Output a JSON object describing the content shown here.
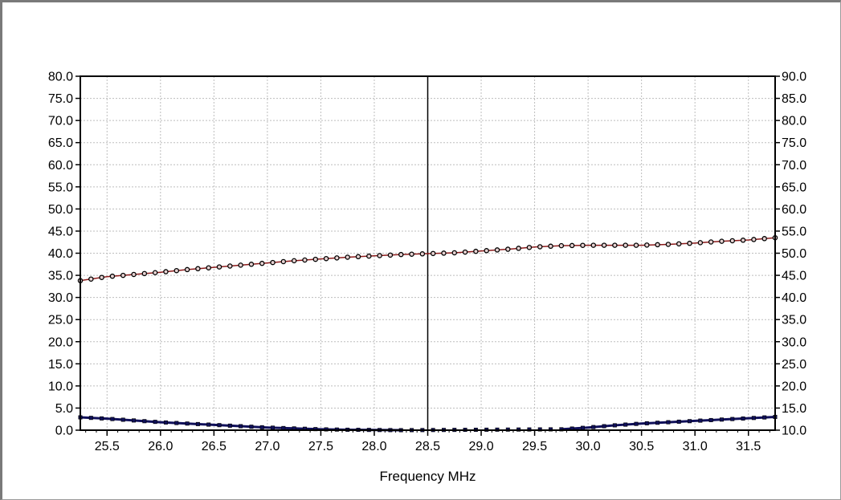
{
  "colors": {
    "background": "#ffffff",
    "plot_background": "#ffffff",
    "grid": "#bdbdbd",
    "series_upper": "#8b1a1a",
    "series_lower": "#10105a",
    "marker_edge": "#000000",
    "marker_fill": "#e6d2d2",
    "cursor": "#000000"
  },
  "chart_data": {
    "type": "line",
    "xlabel": "Frequency MHz",
    "xlim": [
      25.25,
      31.75
    ],
    "xticks": [
      "25.5",
      "26.0",
      "26.5",
      "27.0",
      "27.5",
      "28.0",
      "28.5",
      "29.0",
      "29.5",
      "30.0",
      "30.5",
      "31.0",
      "31.5"
    ],
    "ylim_left": [
      0,
      80
    ],
    "yticks_left": [
      "0.0",
      "5.0",
      "10.0",
      "15.0",
      "20.0",
      "25.0",
      "30.0",
      "35.0",
      "40.0",
      "45.0",
      "50.0",
      "55.0",
      "60.0",
      "65.0",
      "70.0",
      "75.0",
      "80.0"
    ],
    "ylim_right": [
      10,
      90
    ],
    "yticks_right": [
      "10.0",
      "15.0",
      "20.0",
      "25.0",
      "30.0",
      "35.0",
      "40.0",
      "45.0",
      "50.0",
      "55.0",
      "60.0",
      "65.0",
      "70.0",
      "75.0",
      "80.0",
      "85.0",
      "90.0"
    ],
    "grid": true,
    "cursor_x": 28.5,
    "series": [
      {
        "axis": "right",
        "x": [
          25.25,
          25.5,
          25.75,
          26.0,
          26.25,
          26.5,
          26.75,
          27.0,
          27.25,
          27.5,
          27.75,
          28.0,
          28.25,
          28.5,
          28.75,
          29.0,
          29.25,
          29.5,
          29.75,
          30.0,
          30.25,
          30.5,
          30.75,
          31.0,
          31.25,
          31.5,
          31.75
        ],
        "values": [
          43.8,
          44.7,
          45.2,
          45.7,
          46.3,
          46.8,
          47.3,
          47.8,
          48.3,
          48.7,
          49.1,
          49.4,
          49.7,
          49.9,
          50.1,
          50.5,
          50.9,
          51.4,
          51.7,
          51.8,
          51.8,
          51.8,
          52.0,
          52.3,
          52.7,
          53.0,
          53.5
        ]
      },
      {
        "axis": "left",
        "x": [
          25.25,
          25.5,
          25.75,
          26.0,
          26.25,
          26.5,
          26.75,
          27.0,
          27.25,
          27.5,
          27.75,
          28.0,
          28.25,
          29.75,
          30.0,
          30.25,
          30.5,
          30.75,
          31.0,
          31.25,
          31.5,
          31.75
        ],
        "values": [
          2.9,
          2.6,
          2.2,
          1.8,
          1.5,
          1.2,
          0.9,
          0.6,
          0.4,
          0.2,
          0.1,
          0.05,
          0.0,
          0.2,
          0.6,
          1.1,
          1.5,
          1.8,
          2.1,
          2.4,
          2.7,
          3.0
        ]
      }
    ]
  }
}
